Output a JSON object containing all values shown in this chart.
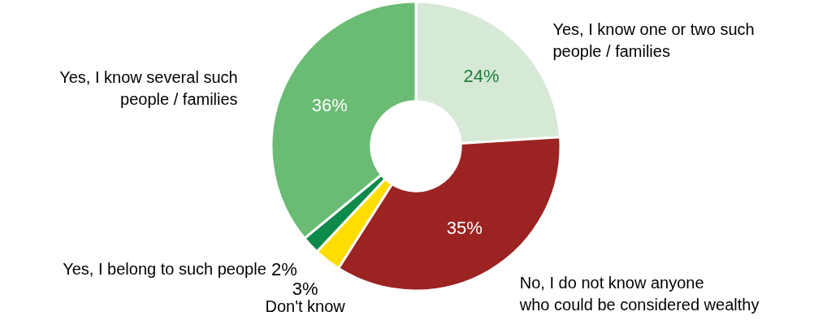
{
  "chart_data": {
    "type": "donut",
    "categories": [
      "Yes, I know one or two such people / families",
      "No, I do not know anyone who could be considered wealthy",
      "Don't know",
      "Yes, I belong to such people",
      "Yes, I know several such people / families"
    ],
    "values": [
      24,
      35,
      3,
      2,
      36
    ],
    "colors": [
      "#d6e9d6",
      "#9b2321",
      "#ffdd00",
      "#0e8a4a",
      "#6abb73"
    ],
    "value_labels": [
      "24%",
      "35%",
      "3%",
      "2%",
      "36%"
    ]
  }
}
